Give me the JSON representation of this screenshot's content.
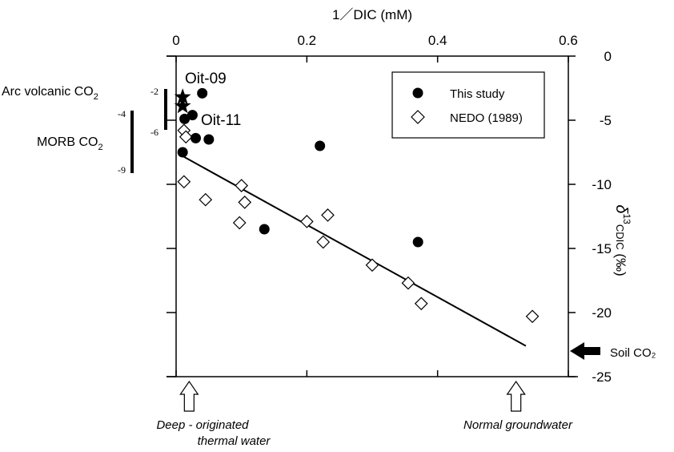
{
  "chart_data": {
    "type": "scatter",
    "title": "",
    "xlabel": "1／DIC (mM)",
    "ylabel_main": "δ",
    "ylabel_sup": "13",
    "ylabel_sub": "CDIC",
    "ylabel_unit": " (‰)",
    "xlim": [
      0,
      0.6
    ],
    "ylim": [
      -25,
      0
    ],
    "x_ticks": [
      "0",
      "0.2",
      "0.4",
      "0.6"
    ],
    "y_ticks": [
      "0",
      "-5",
      "-10",
      "-15",
      "-20",
      "-25"
    ],
    "legend": {
      "position": "top-right",
      "this_study": "This study",
      "nedo": "NEDO (1989)"
    },
    "series": [
      {
        "name": "This study",
        "marker": "filled-circle",
        "points": [
          {
            "x": 0.013,
            "y": -4.9
          },
          {
            "x": 0.01,
            "y": -7.5
          },
          {
            "x": 0.025,
            "y": -4.6
          },
          {
            "x": 0.03,
            "y": -6.4
          },
          {
            "x": 0.04,
            "y": -2.9
          },
          {
            "x": 0.05,
            "y": -6.5
          },
          {
            "x": 0.135,
            "y": -13.5
          },
          {
            "x": 0.22,
            "y": -7.0
          },
          {
            "x": 0.37,
            "y": -14.5
          }
        ]
      },
      {
        "name": "NEDO (1989)",
        "marker": "open-diamond",
        "points": [
          {
            "x": 0.012,
            "y": -5.8
          },
          {
            "x": 0.015,
            "y": -6.3
          },
          {
            "x": 0.012,
            "y": -9.8
          },
          {
            "x": 0.045,
            "y": -11.2
          },
          {
            "x": 0.1,
            "y": -10.1
          },
          {
            "x": 0.105,
            "y": -11.4
          },
          {
            "x": 0.097,
            "y": -13.0
          },
          {
            "x": 0.2,
            "y": -12.9
          },
          {
            "x": 0.232,
            "y": -12.4
          },
          {
            "x": 0.225,
            "y": -14.5
          },
          {
            "x": 0.3,
            "y": -16.3
          },
          {
            "x": 0.355,
            "y": -17.7
          },
          {
            "x": 0.375,
            "y": -19.3
          },
          {
            "x": 0.545,
            "y": -20.3
          }
        ]
      }
    ],
    "stars": [
      {
        "label": "Oit-09",
        "x": 0.01,
        "y": -3.2
      },
      {
        "label": "Oit-11",
        "x": 0.01,
        "y": -3.9
      }
    ],
    "regression_line": {
      "x": [
        0.01,
        0.535
      ],
      "y": [
        -7.8,
        -22.6
      ]
    },
    "arc_volcanic": {
      "label_main": "Arc volcanic CO",
      "label_sub": "2",
      "range": [
        -2,
        -6
      ],
      "tick_top": "-2",
      "tick_bottom": "-6"
    },
    "morb": {
      "label_main": "MORB CO",
      "label_sub": "2",
      "range": [
        -4,
        -9
      ],
      "tick_top": "-4",
      "tick_bottom": "-9"
    },
    "soil_co2": {
      "label": "Soil CO₂",
      "y": -23.0
    },
    "endmembers": [
      {
        "x": 0.02,
        "line1": "Deep - originated",
        "line2": "thermal water"
      },
      {
        "x": 0.52,
        "line1": "Normal groundwater",
        "line2": ""
      }
    ]
  }
}
